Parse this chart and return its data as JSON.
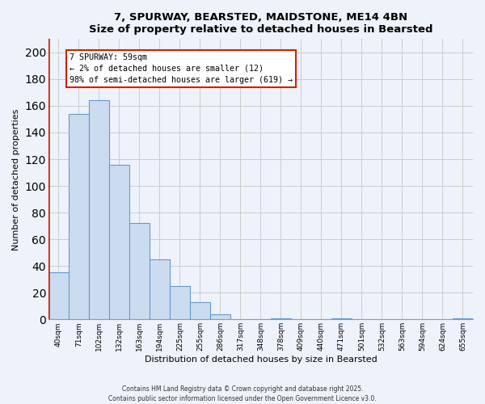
{
  "title": "7, SPURWAY, BEARSTED, MAIDSTONE, ME14 4BN",
  "subtitle": "Size of property relative to detached houses in Bearsted",
  "xlabel": "Distribution of detached houses by size in Bearsted",
  "ylabel": "Number of detached properties",
  "categories": [
    "40sqm",
    "71sqm",
    "102sqm",
    "132sqm",
    "163sqm",
    "194sqm",
    "225sqm",
    "255sqm",
    "286sqm",
    "317sqm",
    "348sqm",
    "378sqm",
    "409sqm",
    "440sqm",
    "471sqm",
    "501sqm",
    "532sqm",
    "563sqm",
    "594sqm",
    "624sqm",
    "655sqm"
  ],
  "values": [
    35,
    154,
    164,
    116,
    72,
    45,
    25,
    13,
    4,
    0,
    0,
    1,
    0,
    0,
    1,
    0,
    0,
    0,
    0,
    0,
    1
  ],
  "bar_color": "#ccdcf0",
  "bar_edge_color": "#6699cc",
  "highlight_line_color": "#cc2200",
  "ylim": [
    0,
    210
  ],
  "yticks": [
    0,
    20,
    40,
    60,
    80,
    100,
    120,
    140,
    160,
    180,
    200
  ],
  "annotation_title": "7 SPURWAY: 59sqm",
  "annotation_line1": "← 2% of detached houses are smaller (12)",
  "annotation_line2": "98% of semi-detached houses are larger (619) →",
  "annotation_box_color": "#ffffff",
  "annotation_box_edge": "#cc2200",
  "footer_line1": "Contains HM Land Registry data © Crown copyright and database right 2025.",
  "footer_line2": "Contains public sector information licensed under the Open Government Licence v3.0.",
  "background_color": "#eef2fa",
  "grid_color": "#cccccc",
  "title_fontsize": 9.5,
  "ylabel_fontsize": 8,
  "xlabel_fontsize": 8
}
